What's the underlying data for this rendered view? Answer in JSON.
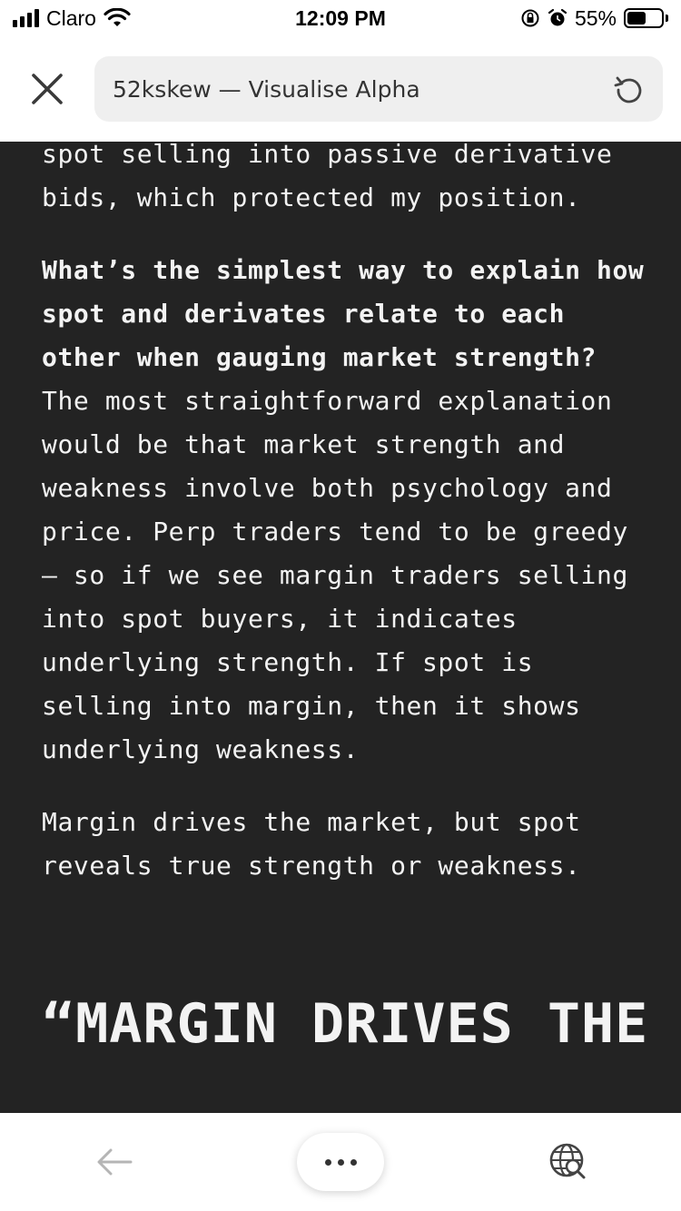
{
  "status_bar": {
    "carrier": "Claro",
    "time": "12:09 PM",
    "battery_percent": "55%",
    "battery_level": 0.55,
    "icons": [
      "signal-icon",
      "wifi-icon",
      "orientation-lock-icon",
      "alarm-icon",
      "battery-icon"
    ]
  },
  "header": {
    "url_title": "52kskew — Visualise Alpha",
    "close_icon": "close-icon",
    "reload_icon": "reload-icon"
  },
  "article": {
    "para_intro": "spot selling into passive derivative bids, which protected my position.",
    "question": "What’s the simplest way to explain how spot and derivates relate to each other when gauging market strength?",
    "para_answer": "The most straightforward explanation would be that market strength and weakness involve both psychology and price. Perp traders tend to be greedy – so if we see margin traders selling into spot buyers, it indicates underlying strength. If spot is selling into margin, then it shows underlying weakness.",
    "para_summary": "Margin drives the market, but spot reveals true strength or weakness.",
    "pullquote": "“MARGIN DRIVES THE"
  },
  "bottom_bar": {
    "back_icon": "back-arrow-icon",
    "more_icon": "more-dots-icon",
    "globe_icon": "globe-search-icon"
  },
  "colors": {
    "content_bg": "#232323",
    "content_text": "#f3f3f3",
    "url_bar_bg": "#efefef"
  }
}
